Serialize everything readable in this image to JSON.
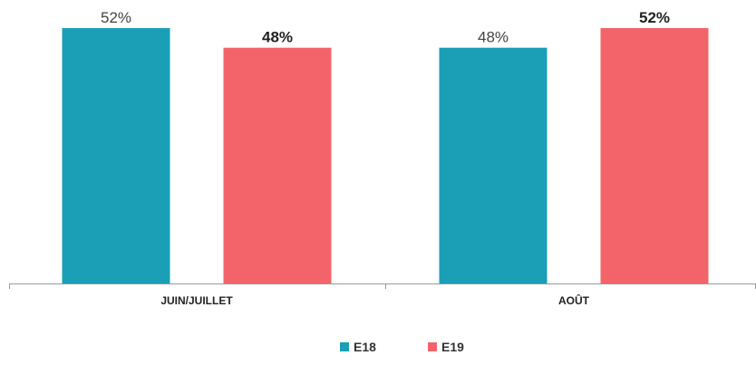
{
  "chart_data": {
    "type": "bar",
    "categories": [
      "JUIN/JUILLET",
      "AOÛT"
    ],
    "series": [
      {
        "name": "E18",
        "values": [
          52,
          48
        ],
        "labels": [
          "52%",
          "48%"
        ],
        "label_bold": [
          false,
          false
        ],
        "color": "#1a9fb7"
      },
      {
        "name": "E19",
        "values": [
          48,
          52
        ],
        "labels": [
          "48%",
          "52%"
        ],
        "label_bold": [
          true,
          true
        ],
        "color": "#f2646a"
      }
    ],
    "ylim": [
      0,
      52
    ],
    "grid": false,
    "legend": "bottom-center",
    "title": "",
    "xlabel": "",
    "ylabel": ""
  }
}
